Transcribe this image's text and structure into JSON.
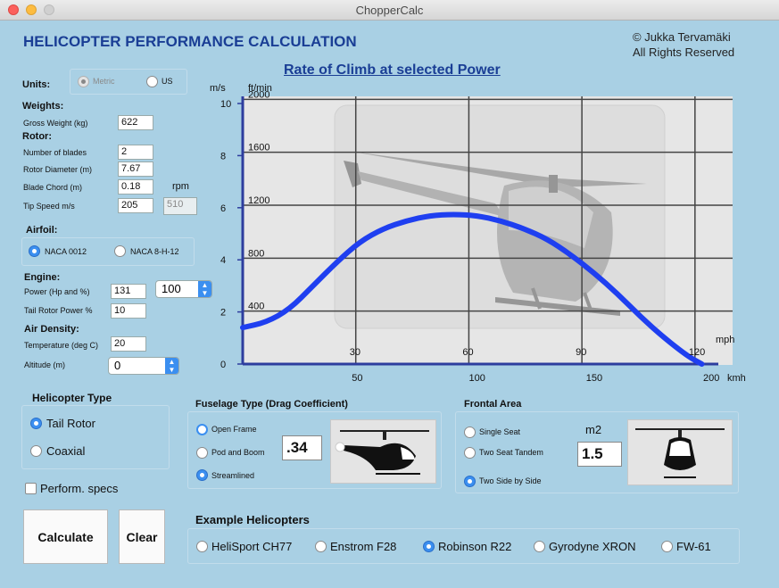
{
  "window": {
    "title": "ChopperCalc"
  },
  "header": {
    "title": "HELICOPTER PERFORMANCE CALCULATION",
    "copyright_line1": "© Jukka Tervamäki",
    "copyright_line2": "All Rights Reserved"
  },
  "units": {
    "label": "Units:",
    "metric": "Metric",
    "us": "US"
  },
  "weights": {
    "heading": "Weights:",
    "gross_label": "Gross Weight (kg)",
    "gross_value": "622"
  },
  "rotor": {
    "heading": "Rotor:",
    "blades_label": "Number of blades",
    "blades_value": "2",
    "diameter_label": "Rotor Diameter (m)",
    "diameter_value": "7.67",
    "chord_label": "Blade Chord (m)",
    "chord_value": "0.18",
    "rpm_label": "rpm",
    "tip_label": "Tip Speed m/s",
    "tip_value": "205",
    "rpm_value": "510"
  },
  "airfoil": {
    "heading": "Airfoil:",
    "naca0012": "NACA 0012",
    "naca8h12": "NACA 8-H-12"
  },
  "engine": {
    "heading": "Engine:",
    "power_label": "Power (Hp and %)",
    "power_value": "131",
    "power_pct": "100",
    "tail_label": "Tail Rotor Power %",
    "tail_value": "10"
  },
  "air": {
    "heading": "Air Density:",
    "temp_label": "Temperature  (deg  C)",
    "temp_value": "20",
    "alt_label": "Altitude  (m)",
    "alt_value": "0"
  },
  "heli_type": {
    "heading": "Helicopter Type",
    "tail": "Tail Rotor",
    "coaxial": "Coaxial"
  },
  "perform": {
    "label": "Perform. specs"
  },
  "buttons": {
    "calculate": "Calculate",
    "clear": "Clear"
  },
  "fuselage": {
    "heading": "Fuselage Type (Drag Coefficient)",
    "open": "Open Frame",
    "pod": "Pod and Boom",
    "stream": "Streamlined",
    "cd_value": ".34"
  },
  "frontal": {
    "heading": "Frontal Area",
    "single": "Single Seat",
    "tandem": "Two Seat Tandem",
    "side": "Two Side by Side",
    "unit": "m2",
    "area_value": "1.5"
  },
  "examples": {
    "heading": "Example Helicopters",
    "items": [
      "HeliSport CH77",
      "Enstrom F28",
      "Robinson R22",
      "Gyrodyne XRON",
      "FW-61"
    ]
  },
  "chart_data": {
    "type": "line",
    "title": "Rate of Climb at selected Power",
    "ylabel_left": "m/s",
    "ylabel_right": "ft/min",
    "xlabel_top": "mph",
    "xlabel_bottom": "kmh",
    "ylim": [
      0,
      10
    ],
    "xlim_kmh": [
      0,
      200
    ],
    "y_ticks_ms": [
      "0",
      "2",
      "4",
      "6",
      "8",
      "10"
    ],
    "y_ticks_ftmin": [
      "400",
      "800",
      "1200",
      "1600",
      "2000"
    ],
    "x_ticks_mph": [
      "30",
      "60",
      "90",
      "120"
    ],
    "x_ticks_kmh": [
      "50",
      "100",
      "150",
      "200"
    ],
    "series": [
      {
        "name": "Rate of Climb",
        "x_kmh": [
          0,
          10,
          20,
          30,
          40,
          50,
          60,
          70,
          80,
          90,
          100,
          110,
          120,
          130,
          140,
          150,
          160,
          170,
          180,
          190,
          196
        ],
        "y_ms": [
          1.4,
          1.6,
          2.1,
          3.0,
          3.9,
          4.7,
          5.2,
          5.5,
          5.7,
          5.75,
          5.7,
          5.5,
          5.2,
          4.8,
          4.2,
          3.5,
          2.7,
          1.8,
          1.0,
          0.3,
          0
        ]
      }
    ]
  }
}
